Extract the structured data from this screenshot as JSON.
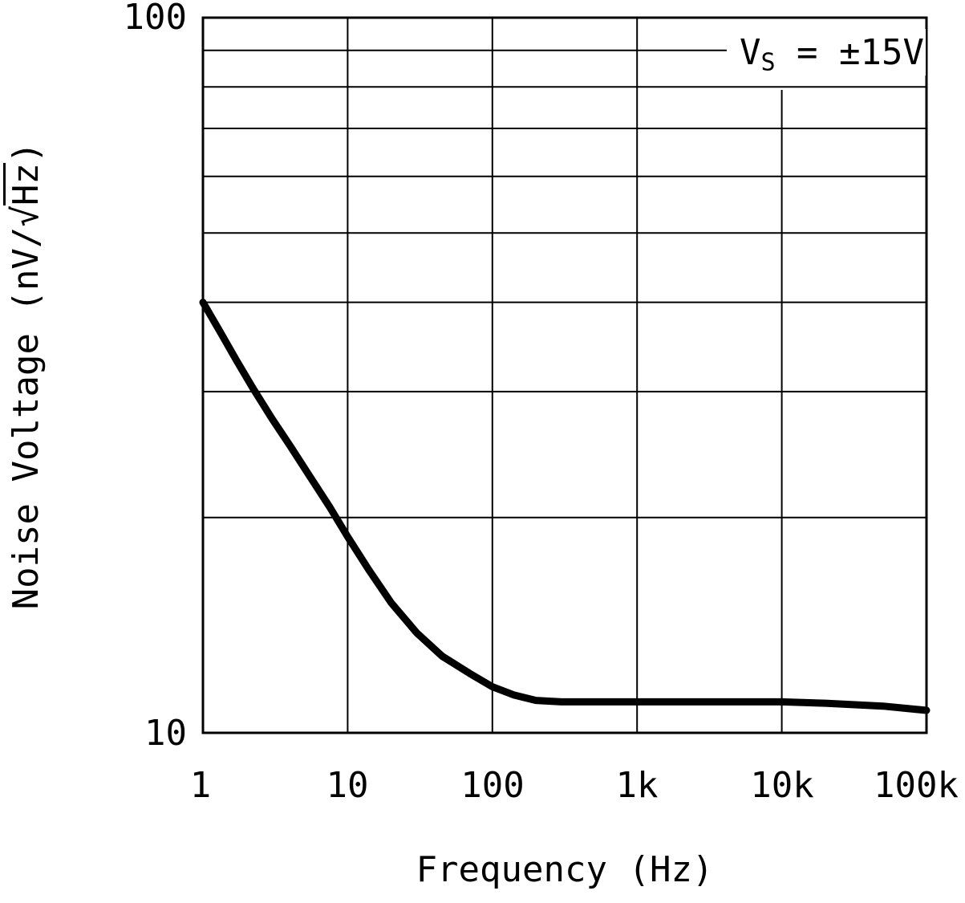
{
  "chart_data": {
    "type": "line",
    "title": "",
    "xlabel": "Frequency (Hz)",
    "ylabel": "Noise Voltage (nV/√Hz)",
    "ylabel_parts": {
      "prefix": "Noise Voltage (nV/",
      "sqrt_symbol": "√",
      "radicand": "Hz",
      "suffix": ")"
    },
    "x_scale": "log",
    "y_scale": "log",
    "xlim": [
      1,
      100000
    ],
    "ylim": [
      10,
      100
    ],
    "grid": "log: minor horizontal lines 20-90, major vertical lines at decades",
    "x_ticks": [
      {
        "value": 1,
        "label": "1"
      },
      {
        "value": 10,
        "label": "10"
      },
      {
        "value": 100,
        "label": "100"
      },
      {
        "value": 1000,
        "label": "1k"
      },
      {
        "value": 10000,
        "label": "10k"
      },
      {
        "value": 100000,
        "label": "100k"
      }
    ],
    "y_ticks": [
      {
        "value": 10,
        "label": "10"
      },
      {
        "value": 100,
        "label": "100"
      }
    ],
    "annotation": {
      "text": "Vs = ±15V",
      "v": "V",
      "sub": "S",
      "rest": " = ±15V"
    },
    "line_color": "#000000",
    "background_color": "#ffffff",
    "series": [
      {
        "name": "noise voltage",
        "x": [
          1,
          1.3,
          1.7,
          2.2,
          3,
          4,
          5.5,
          7.5,
          10,
          14,
          20,
          30,
          45,
          70,
          100,
          140,
          200,
          300,
          500,
          1000,
          2000,
          5000,
          10000,
          20000,
          50000,
          100000
        ],
        "y": [
          40,
          36.5,
          33.2,
          30.4,
          27.5,
          25.2,
          22.8,
          20.7,
          18.8,
          16.9,
          15.2,
          13.8,
          12.8,
          12.1,
          11.6,
          11.3,
          11.1,
          11.05,
          11.05,
          11.05,
          11.05,
          11.05,
          11.05,
          11.0,
          10.9,
          10.75
        ]
      }
    ]
  }
}
